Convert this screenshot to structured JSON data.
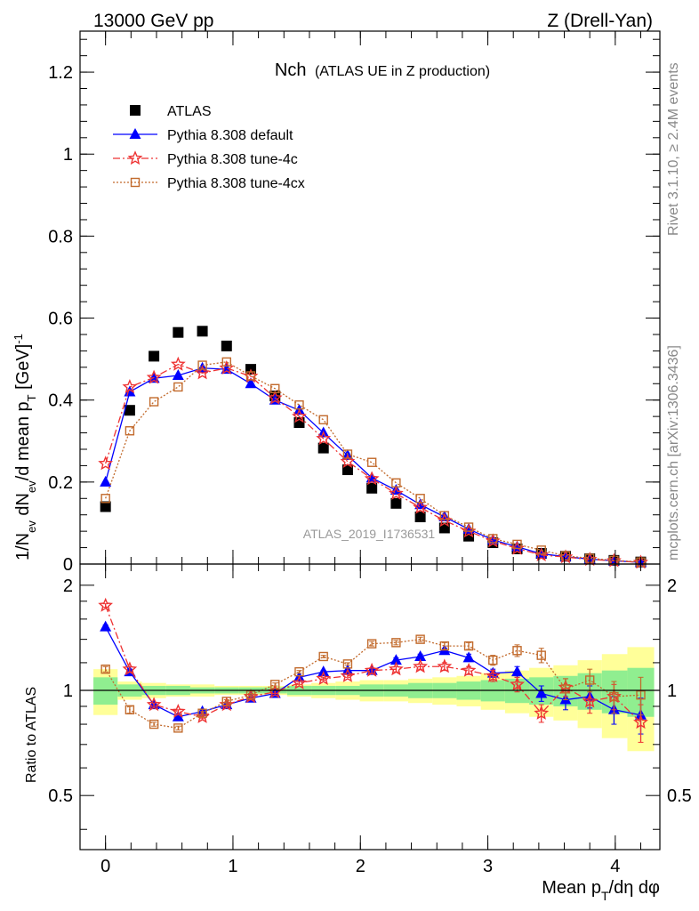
{
  "header": {
    "left": "13000 GeV pp",
    "right": "Z (Drell-Yan)"
  },
  "side_labels": {
    "rivet": "Rivet 3.1.10, ≥ 2.4M events",
    "mcplots": "mcplots.cern.ch [arXiv:1306.3436]"
  },
  "analysis_label": "ATLAS_2019_I1736531",
  "chart_data": [
    {
      "panel": "main",
      "type": "scatter",
      "title": "Nch",
      "subtitle": "(ATLAS UE in Z production)",
      "ylabel": "1/N_ev dN_ev/d mean p_T [GeV]^-1",
      "xlim": [
        -0.2,
        4.35
      ],
      "ylim": [
        0,
        1.3
      ],
      "yticks": [
        0,
        0.2,
        0.4,
        0.6,
        0.8,
        1,
        1.2
      ],
      "ytick_labels": [
        "0",
        "0.2",
        "0.4",
        "0.6",
        "0.8",
        "1",
        "1.2"
      ],
      "x": [
        0,
        0.19,
        0.38,
        0.57,
        0.76,
        0.95,
        1.14,
        1.33,
        1.52,
        1.71,
        1.9,
        2.09,
        2.28,
        2.47,
        2.66,
        2.85,
        3.04,
        3.23,
        3.42,
        3.61,
        3.8,
        3.99,
        4.2
      ],
      "series": [
        {
          "name": "ATLAS",
          "color": "#000000",
          "marker": "square-filled",
          "values": [
            0.14,
            0.375,
            0.507,
            0.565,
            0.568,
            0.532,
            0.475,
            0.41,
            0.345,
            0.283,
            0.23,
            0.185,
            0.148,
            0.115,
            0.088,
            0.068,
            0.052,
            0.037,
            0.026,
            0.019,
            0.013,
            0.009,
            0.005
          ]
        },
        {
          "name": "Pythia 8.308 default",
          "color": "#0000ff",
          "marker": "triangle-filled",
          "line": "solid",
          "values": [
            0.2,
            0.42,
            0.453,
            0.46,
            0.478,
            0.475,
            0.44,
            0.4,
            0.375,
            0.32,
            0.265,
            0.21,
            0.18,
            0.145,
            0.115,
            0.085,
            0.059,
            0.042,
            0.025,
            0.018,
            0.012,
            0.008,
            0.004
          ]
        },
        {
          "name": "Pythia 8.308 tune-4c",
          "color": "#ee3333",
          "marker": "star-open",
          "line": "dashdot",
          "values": [
            0.245,
            0.432,
            0.455,
            0.487,
            0.466,
            0.478,
            0.458,
            0.405,
            0.36,
            0.306,
            0.25,
            0.208,
            0.172,
            0.138,
            0.106,
            0.08,
            0.056,
            0.038,
            0.022,
            0.017,
            0.011,
            0.008,
            0.004
          ]
        },
        {
          "name": "Pythia 8.308 tune-4cx",
          "color": "#c26a2c",
          "marker": "square-open",
          "line": "dotted",
          "values": [
            0.16,
            0.325,
            0.396,
            0.432,
            0.485,
            0.493,
            0.459,
            0.428,
            0.388,
            0.352,
            0.268,
            0.248,
            0.198,
            0.16,
            0.118,
            0.09,
            0.062,
            0.048,
            0.034,
            0.02,
            0.014,
            0.009,
            0.005
          ]
        }
      ]
    },
    {
      "panel": "ratio",
      "type": "scatter",
      "ylabel": "Ratio to ATLAS",
      "xlabel": "Mean p_T/dη dφ",
      "xlim": [
        -0.2,
        4.35
      ],
      "ylim": [
        0.35,
        2.3
      ],
      "yscale": "log",
      "yticks": [
        0.5,
        1,
        2
      ],
      "ytick_labels": [
        "0.5",
        "1",
        "2"
      ],
      "xticks": [
        0,
        1,
        2,
        3,
        4
      ],
      "xtick_labels": [
        "0",
        "1",
        "2",
        "3",
        "4"
      ],
      "x": [
        0,
        0.19,
        0.38,
        0.57,
        0.76,
        0.95,
        1.14,
        1.33,
        1.52,
        1.71,
        1.9,
        2.09,
        2.28,
        2.47,
        2.66,
        2.85,
        3.04,
        3.23,
        3.42,
        3.61,
        3.8,
        3.99,
        4.2
      ],
      "band_inner": [
        0.09,
        0.04,
        0.03,
        0.03,
        0.02,
        0.02,
        0.02,
        0.02,
        0.03,
        0.03,
        0.03,
        0.04,
        0.04,
        0.05,
        0.05,
        0.06,
        0.07,
        0.08,
        0.09,
        0.1,
        0.12,
        0.14,
        0.16
      ],
      "band_outer": [
        0.15,
        0.06,
        0.05,
        0.04,
        0.04,
        0.03,
        0.03,
        0.03,
        0.04,
        0.05,
        0.06,
        0.07,
        0.07,
        0.08,
        0.09,
        0.1,
        0.12,
        0.14,
        0.16,
        0.18,
        0.22,
        0.27,
        0.33
      ],
      "series": [
        {
          "name": "Pythia 8.308 default",
          "color": "#0000ff",
          "values": [
            1.52,
            1.13,
            0.91,
            0.84,
            0.87,
            0.91,
            0.95,
            0.98,
            1.09,
            1.13,
            1.14,
            1.14,
            1.22,
            1.25,
            1.3,
            1.24,
            1.12,
            1.13,
            0.98,
            0.94,
            0.96,
            0.88,
            0.85
          ],
          "errors": [
            0.02,
            0.02,
            0.01,
            0.01,
            0.01,
            0.01,
            0.01,
            0.01,
            0.01,
            0.01,
            0.01,
            0.01,
            0.02,
            0.02,
            0.02,
            0.03,
            0.03,
            0.04,
            0.05,
            0.06,
            0.07,
            0.08,
            0.1
          ]
        },
        {
          "name": "Pythia 8.308 tune-4c",
          "color": "#ee3333",
          "values": [
            1.75,
            1.15,
            0.91,
            0.87,
            0.84,
            0.91,
            0.96,
            0.99,
            1.05,
            1.08,
            1.1,
            1.14,
            1.15,
            1.17,
            1.17,
            1.14,
            1.1,
            1.04,
            0.86,
            1.02,
            0.93,
            0.96,
            0.81
          ],
          "errors": [
            0.02,
            0.02,
            0.01,
            0.01,
            0.01,
            0.01,
            0.01,
            0.01,
            0.01,
            0.01,
            0.01,
            0.02,
            0.02,
            0.02,
            0.03,
            0.03,
            0.04,
            0.05,
            0.05,
            0.06,
            0.07,
            0.08,
            0.1
          ]
        },
        {
          "name": "Pythia 8.308 tune-4cx",
          "color": "#c26a2c",
          "values": [
            1.15,
            0.88,
            0.8,
            0.78,
            0.86,
            0.93,
            0.97,
            1.04,
            1.13,
            1.25,
            1.19,
            1.36,
            1.37,
            1.4,
            1.34,
            1.34,
            1.22,
            1.3,
            1.26,
            1.01,
            1.07,
            0.96,
            0.97
          ],
          "errors": [
            0.02,
            0.02,
            0.01,
            0.01,
            0.01,
            0.01,
            0.01,
            0.01,
            0.01,
            0.01,
            0.01,
            0.02,
            0.02,
            0.02,
            0.03,
            0.03,
            0.04,
            0.05,
            0.06,
            0.07,
            0.08,
            0.1,
            0.12
          ]
        }
      ]
    }
  ],
  "legend": {
    "placement": "top-left",
    "entries": [
      "ATLAS",
      "Pythia 8.308 default",
      "Pythia 8.308 tune-4c",
      "Pythia 8.308 tune-4cx"
    ]
  },
  "colors": {
    "band_inner": "#90ee90",
    "band_outer": "#ffff99"
  }
}
